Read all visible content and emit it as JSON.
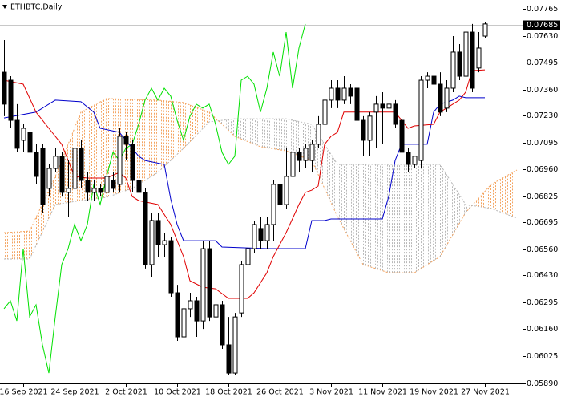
{
  "chart_data": {
    "type": "candlestick",
    "title": "ETHBTC,Daily",
    "categories": [
      null,
      null,
      null,
      "16 Sep 2021",
      null,
      null,
      null,
      null,
      null,
      null,
      null,
      "24 Sep 2021",
      null,
      null,
      null,
      null,
      null,
      null,
      null,
      "2 Oct 2021",
      null,
      null,
      null,
      null,
      null,
      null,
      null,
      "10 Oct 2021",
      null,
      null,
      null,
      null,
      null,
      null,
      null,
      "18 Oct 2021",
      null,
      null,
      null,
      null,
      null,
      null,
      null,
      "26 Oct 2021",
      null,
      null,
      null,
      null,
      null,
      null,
      null,
      "3 Nov 2021",
      null,
      null,
      null,
      null,
      null,
      null,
      null,
      "11 Nov 2021",
      null,
      null,
      null,
      null,
      null,
      null,
      null,
      "19 Nov 2021",
      null,
      null,
      null,
      null,
      null,
      null,
      null,
      "27 Nov 2021"
    ],
    "open": [
      0.07447,
      0.07407,
      0.07206,
      0.07106,
      0.07146,
      0.07046,
      0.07066,
      0.06865,
      0.06965,
      0.07026,
      0.06845,
      0.06865,
      0.07066,
      0.06905,
      0.06845,
      0.06865,
      0.06845,
      0.06905,
      0.06885,
      0.07126,
      0.07086,
      0.06905,
      0.06845,
      0.06483,
      0.06704,
      0.06583,
      0.06603,
      0.06342,
      0.06121,
      0.06262,
      0.06302,
      0.06201,
      0.06563,
      0.06221,
      0.06282,
      0.06081,
      0.0594,
      0.06241,
      0.06483,
      0.06563,
      0.06664,
      0.06603,
      0.06684,
      0.06885,
      0.06784,
      0.06925,
      0.07046,
      0.07005,
      0.07005,
      0.07086,
      0.07186,
      0.07307,
      0.07367,
      0.07307,
      0.07367,
      0.07367,
      0.07206,
      0.07106,
      0.07247,
      0.07287,
      0.07267,
      0.07287,
      0.07206,
      0.07046,
      0.06985,
      0.07005,
      0.07407,
      0.07427,
      0.07387,
      0.07267,
      0.07367,
      0.07548,
      0.07427,
      0.07648,
      0.07468,
      0.07628
    ],
    "high": [
      0.07608,
      0.07427,
      0.07287,
      0.07186,
      0.07166,
      0.07086,
      0.07086,
      0.06985,
      0.07066,
      0.07046,
      0.07005,
      0.07086,
      0.07106,
      0.06945,
      0.06905,
      0.06885,
      0.06965,
      0.06945,
      0.07166,
      0.07146,
      0.07106,
      0.06925,
      0.06865,
      0.06744,
      0.06744,
      0.06643,
      0.06623,
      0.06382,
      0.06342,
      0.06342,
      0.06322,
      0.06603,
      0.06603,
      0.06302,
      0.06302,
      0.06221,
      0.06241,
      0.06503,
      0.06603,
      0.06704,
      0.06724,
      0.06724,
      0.06905,
      0.07005,
      0.07066,
      0.07106,
      0.07066,
      0.07086,
      0.07106,
      0.07227,
      0.07468,
      0.07407,
      0.07407,
      0.07427,
      0.07387,
      0.07387,
      0.07227,
      0.07247,
      0.07327,
      0.07347,
      0.07307,
      0.07307,
      0.07247,
      0.07066,
      0.07026,
      0.07427,
      0.07447,
      0.07468,
      0.07447,
      0.07407,
      0.07628,
      0.07588,
      0.07689,
      0.07689,
      0.07648,
      0.07697
    ],
    "low": [
      0.07227,
      0.07166,
      0.07046,
      0.07046,
      0.07005,
      0.06885,
      0.06744,
      0.06824,
      0.06945,
      0.06824,
      0.06724,
      0.06824,
      0.06865,
      0.06804,
      0.06804,
      0.06824,
      0.06804,
      0.06845,
      0.06845,
      0.07005,
      0.06845,
      0.06804,
      0.06463,
      0.06422,
      0.06523,
      0.06523,
      0.06322,
      0.06101,
      0.06,
      0.06221,
      0.06121,
      0.06161,
      0.06201,
      0.06181,
      0.06061,
      0.05928,
      0.05928,
      0.06221,
      0.06463,
      0.06543,
      0.06563,
      0.06563,
      0.06603,
      0.06764,
      0.06764,
      0.06905,
      0.06945,
      0.06965,
      0.06945,
      0.07066,
      0.07166,
      0.07267,
      0.07267,
      0.07287,
      0.07287,
      0.07166,
      0.07026,
      0.07026,
      0.07066,
      0.07086,
      0.07146,
      0.07166,
      0.07026,
      0.06945,
      0.06965,
      0.06965,
      0.07367,
      0.07347,
      0.07227,
      0.07247,
      0.07347,
      0.07407,
      0.07387,
      0.07347,
      0.07447,
      0.07616
    ],
    "close": [
      0.07287,
      0.07206,
      0.07066,
      0.07166,
      0.07046,
      0.06925,
      0.06784,
      0.06965,
      0.07026,
      0.06845,
      0.06865,
      0.07066,
      0.06905,
      0.06845,
      0.06865,
      0.06845,
      0.06925,
      0.06865,
      0.07126,
      0.07086,
      0.06905,
      0.06845,
      0.06483,
      0.06704,
      0.06583,
      0.06603,
      0.06342,
      0.06121,
      0.06262,
      0.06302,
      0.06201,
      0.06563,
      0.06221,
      0.06282,
      0.06081,
      0.0594,
      0.06221,
      0.06483,
      0.06563,
      0.06684,
      0.06603,
      0.06684,
      0.06885,
      0.06784,
      0.06925,
      0.07046,
      0.07005,
      0.07066,
      0.07086,
      0.07186,
      0.07307,
      0.07367,
      0.07307,
      0.07367,
      0.07327,
      0.07206,
      0.07106,
      0.07227,
      0.07287,
      0.07267,
      0.07287,
      0.07186,
      0.07046,
      0.06985,
      0.07026,
      0.07407,
      0.07427,
      0.07387,
      0.07247,
      0.07367,
      0.07548,
      0.07427,
      0.07648,
      0.07367,
      0.07568,
      0.07689
    ],
    "up_color": "#ffffff",
    "down_color": "#000000",
    "ylim": [
      0.05888,
      0.07809
    ],
    "yticks": [
      0.07765,
      {
        "value": 0.0763,
        "label": "0.07630"
      },
      0.07495,
      {
        "value": 0.0736,
        "label": "0.07360"
      },
      {
        "value": 0.0723,
        "label": "0.07230"
      },
      0.07095,
      {
        "value": 0.0696,
        "label": "0.06960"
      },
      0.06825,
      0.06695,
      {
        "value": 0.0656,
        "label": "0.06560"
      },
      {
        "value": 0.0643,
        "label": "0.06430"
      },
      0.06295,
      {
        "value": 0.0616,
        "label": "0.06160"
      },
      0.06025,
      {
        "value": 0.0589,
        "label": "0.05890"
      }
    ],
    "last_price": 0.07685,
    "cloud": {
      "x": [
        0,
        4,
        8,
        12,
        16,
        20,
        24,
        28,
        32,
        36,
        40,
        44,
        48,
        52,
        56,
        60,
        64,
        68,
        72,
        76,
        80
      ],
      "span_a": [
        0.06643,
        0.06651,
        0.06925,
        0.07247,
        0.07315,
        0.07311,
        0.07307,
        0.07295,
        0.07247,
        0.07126,
        0.07074,
        0.07053,
        0.07005,
        0.06724,
        0.06483,
        0.06442,
        0.06442,
        0.06523,
        0.06744,
        0.06885,
        0.06957
      ],
      "span_b": [
        0.06511,
        0.06511,
        0.06784,
        0.06804,
        0.0682,
        0.06865,
        0.06945,
        0.07066,
        0.07198,
        0.07214,
        0.07214,
        0.07214,
        0.07186,
        0.06985,
        0.06985,
        0.06985,
        0.06985,
        0.06985,
        0.06784,
        0.06764,
        0.06716
      ],
      "up_color": "#f4a460",
      "down_color": "#b8b8b8"
    },
    "lines": [
      {
        "color": "#00e000",
        "x": [
          0,
          1,
          2,
          3,
          4,
          5,
          6,
          7,
          8,
          9,
          10,
          11,
          12,
          13,
          14,
          15,
          16,
          17,
          18,
          19,
          20,
          21,
          22,
          23,
          24,
          25,
          26,
          27,
          28,
          29,
          30,
          31,
          32,
          33,
          34,
          35,
          36,
          37,
          38,
          39,
          40,
          41,
          42,
          43,
          44,
          45,
          46,
          47
        ],
        "values": [
          0.06262,
          0.06302,
          0.06201,
          0.06563,
          0.06221,
          0.06282,
          0.06081,
          0.0594,
          0.06221,
          0.06483,
          0.06563,
          0.06684,
          0.06603,
          0.06684,
          0.06885,
          0.06784,
          0.06925,
          0.07046,
          0.07005,
          0.07066,
          0.07086,
          0.07186,
          0.07307,
          0.07367,
          0.07307,
          0.07367,
          0.07327,
          0.07206,
          0.07106,
          0.07227,
          0.07287,
          0.07267,
          0.07287,
          0.07186,
          0.07046,
          0.06985,
          0.07026,
          0.07407,
          0.07427,
          0.07387,
          0.07247,
          0.07367,
          0.07548,
          0.07427,
          0.07648,
          0.07367,
          0.07568,
          0.07689
        ]
      },
      {
        "color": "#0000cc",
        "x": [
          0,
          5,
          8,
          12,
          14,
          15,
          18,
          21,
          22,
          25,
          26,
          27,
          28,
          33,
          34,
          41,
          47,
          48,
          50,
          51,
          59,
          60,
          61,
          62,
          66,
          67,
          68,
          70,
          71,
          72,
          75
        ],
        "values": [
          0.07218,
          0.07247,
          0.07307,
          0.07299,
          0.07247,
          0.07166,
          0.07146,
          0.07026,
          0.07005,
          0.06985,
          0.06812,
          0.06684,
          0.06603,
          0.06603,
          0.06571,
          0.06563,
          0.06563,
          0.06704,
          0.06704,
          0.06712,
          0.06712,
          0.06824,
          0.07005,
          0.07086,
          0.07086,
          0.07247,
          0.07287,
          0.07307,
          0.07327,
          0.07319,
          0.07319
        ]
      },
      {
        "color": "#e00000",
        "x": [
          0,
          3,
          5,
          7,
          9,
          11,
          13,
          16,
          18,
          19,
          20,
          21,
          24,
          26,
          28,
          29,
          31,
          33,
          35,
          38,
          39,
          41,
          42,
          44,
          46,
          47,
          48,
          49,
          50,
          51,
          52,
          53,
          56,
          58,
          61,
          63,
          64,
          67,
          68,
          70,
          71,
          72,
          73,
          75
        ],
        "values": [
          0.07407,
          0.07387,
          0.07247,
          0.07166,
          0.07086,
          0.06925,
          0.06917,
          0.06917,
          0.06945,
          0.06917,
          0.06824,
          0.06804,
          0.06784,
          0.06684,
          0.06523,
          0.06402,
          0.0637,
          0.06362,
          0.06314,
          0.06314,
          0.06342,
          0.06442,
          0.06523,
          0.06643,
          0.06784,
          0.06845,
          0.06856,
          0.06877,
          0.07086,
          0.07126,
          0.07146,
          0.07247,
          0.07247,
          0.07247,
          0.07247,
          0.07166,
          0.07178,
          0.07186,
          0.07247,
          0.07287,
          0.07307,
          0.07347,
          0.07455,
          0.07459
        ]
      }
    ]
  }
}
